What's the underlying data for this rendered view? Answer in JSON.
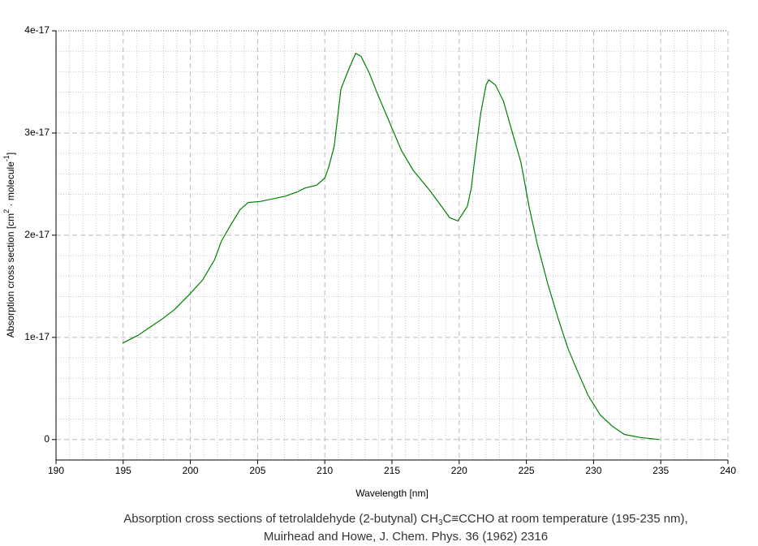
{
  "chart_data": {
    "type": "line",
    "title": {
      "line1": [
        "Absorption cross sections of tetrolaldehyde (2-butynal) CH",
        "3",
        "C≡CCHO at room temperature (195-235 nm),"
      ],
      "line2": "Muirhead and Howe, J. Chem. Phys. 36 (1962) 2316"
    },
    "x_label": "Wavelength [nm]",
    "y_label": [
      "Absorption cross section [cm",
      "2",
      " · molecule",
      "-1",
      "]"
    ],
    "xlim": [
      190,
      240
    ],
    "xticks": [
      190,
      195,
      200,
      205,
      210,
      215,
      220,
      225,
      230,
      235,
      240
    ],
    "ylim": [
      -2e-18,
      4e-17
    ],
    "yticks": [
      0,
      1e-17,
      2e-17,
      3e-17,
      4e-17
    ],
    "grid": true,
    "minor_grid": true,
    "series": [
      {
        "color": "#008000",
        "x": [
          194.95,
          196.1,
          197.0,
          197.9,
          198.8,
          200.0,
          200.9,
          201.8,
          202.3,
          203.0,
          203.7,
          204.3,
          205.2,
          207.0,
          207.9,
          208.5,
          209.4,
          210.0,
          210.3,
          210.7,
          211.2,
          211.8,
          212.3,
          212.7,
          213.3,
          213.9,
          214.8,
          215.7,
          216.6,
          217.8,
          218.7,
          219.3,
          219.9,
          220.6,
          220.9,
          221.2,
          221.6,
          222.0,
          222.2,
          222.7,
          223.3,
          223.9,
          224.6,
          225.2,
          225.8,
          226.6,
          227.4,
          228.1,
          228.8,
          229.6,
          230.5,
          231.4,
          232.3,
          233.5,
          234.9
        ],
        "values": [
          9.44e-18,
          1.02e-17,
          1.1e-17,
          1.18e-17,
          1.27e-17,
          1.43e-17,
          1.56e-17,
          1.76e-17,
          1.94e-17,
          2.1e-17,
          2.25e-17,
          2.32e-17,
          2.33e-17,
          2.38e-17,
          2.42e-17,
          2.46e-17,
          2.49e-17,
          2.56e-17,
          2.67e-17,
          2.87e-17,
          3.43e-17,
          3.63e-17,
          3.78e-17,
          3.75e-17,
          3.59e-17,
          3.39e-17,
          3.11e-17,
          2.83e-17,
          2.63e-17,
          2.44e-17,
          2.28e-17,
          2.17e-17,
          2.14e-17,
          2.28e-17,
          2.46e-17,
          2.79e-17,
          3.19e-17,
          3.47e-17,
          3.52e-17,
          3.47e-17,
          3.31e-17,
          3.03e-17,
          2.71e-17,
          2.28e-17,
          1.92e-17,
          1.52e-17,
          1.17e-17,
          8.9e-18,
          6.7e-18,
          4.3e-18,
          2.4e-18,
          1.3e-18,
          5e-19,
          2e-19,
          0
        ]
      }
    ]
  }
}
